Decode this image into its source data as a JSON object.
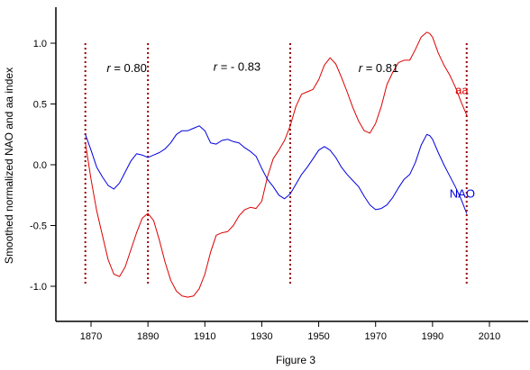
{
  "chart_data": {
    "type": "line",
    "title": "",
    "caption": "Figure 3",
    "xlabel": "",
    "ylabel": "Smoothed normalized NAO and aa index",
    "xlim": [
      1858,
      2012
    ],
    "ylim": [
      -1.3,
      1.3
    ],
    "xticks": [
      1870,
      1890,
      1910,
      1930,
      1950,
      1970,
      1990,
      2010
    ],
    "yticks": [
      -1.0,
      -0.5,
      0.0,
      0.5,
      1.0
    ],
    "ytick_labels": [
      "-1.0",
      "-0.5",
      "0.0",
      "0.5",
      "1.0"
    ],
    "grid": false,
    "legend": "none",
    "colors": {
      "aa": "#dd0000",
      "NAO": "#0000dd",
      "divider": "#990000",
      "axis": "#000000"
    },
    "series": [
      {
        "name": "aa",
        "x": [
          1868,
          1870,
          1872,
          1874,
          1876,
          1878,
          1880,
          1882,
          1884,
          1886,
          1888,
          1890,
          1892,
          1894,
          1896,
          1898,
          1900,
          1902,
          1904,
          1906,
          1908,
          1910,
          1912,
          1914,
          1916,
          1918,
          1920,
          1922,
          1924,
          1926,
          1928,
          1930,
          1932,
          1934,
          1936,
          1938,
          1940,
          1942,
          1944,
          1946,
          1948,
          1950,
          1952,
          1954,
          1956,
          1958,
          1960,
          1962,
          1964,
          1966,
          1968,
          1970,
          1972,
          1974,
          1976,
          1978,
          1980,
          1982,
          1984,
          1986,
          1988,
          1989,
          1990,
          1992,
          1994,
          1996,
          1998,
          2000,
          2002
        ],
        "y": [
          0.18,
          -0.12,
          -0.38,
          -0.58,
          -0.78,
          -0.9,
          -0.92,
          -0.84,
          -0.7,
          -0.56,
          -0.44,
          -0.4,
          -0.46,
          -0.62,
          -0.8,
          -0.95,
          -1.04,
          -1.08,
          -1.09,
          -1.08,
          -1.02,
          -0.9,
          -0.72,
          -0.58,
          -0.56,
          -0.55,
          -0.5,
          -0.42,
          -0.37,
          -0.35,
          -0.36,
          -0.3,
          -0.1,
          0.05,
          0.12,
          0.2,
          0.32,
          0.48,
          0.58,
          0.6,
          0.62,
          0.7,
          0.82,
          0.88,
          0.83,
          0.72,
          0.6,
          0.47,
          0.36,
          0.28,
          0.26,
          0.34,
          0.48,
          0.66,
          0.76,
          0.84,
          0.86,
          0.86,
          0.95,
          1.05,
          1.09,
          1.08,
          1.05,
          0.92,
          0.82,
          0.74,
          0.64,
          0.52,
          0.41
        ]
      },
      {
        "name": "NAO",
        "x": [
          1868,
          1870,
          1872,
          1874,
          1876,
          1878,
          1880,
          1882,
          1884,
          1886,
          1888,
          1890,
          1892,
          1894,
          1896,
          1898,
          1900,
          1902,
          1904,
          1906,
          1908,
          1910,
          1912,
          1914,
          1916,
          1918,
          1920,
          1922,
          1924,
          1926,
          1928,
          1930,
          1932,
          1934,
          1936,
          1938,
          1940,
          1942,
          1944,
          1946,
          1948,
          1950,
          1952,
          1954,
          1956,
          1958,
          1960,
          1962,
          1964,
          1966,
          1968,
          1970,
          1972,
          1974,
          1976,
          1978,
          1980,
          1982,
          1984,
          1986,
          1988,
          1989,
          1990,
          1992,
          1994,
          1996,
          1998,
          2000,
          2002
        ],
        "y": [
          0.25,
          0.12,
          -0.02,
          -0.1,
          -0.17,
          -0.2,
          -0.15,
          -0.06,
          0.03,
          0.09,
          0.08,
          0.06,
          0.08,
          0.1,
          0.13,
          0.18,
          0.25,
          0.28,
          0.28,
          0.3,
          0.32,
          0.28,
          0.18,
          0.17,
          0.2,
          0.21,
          0.19,
          0.18,
          0.14,
          0.11,
          0.07,
          -0.03,
          -0.12,
          -0.18,
          -0.25,
          -0.28,
          -0.24,
          -0.16,
          -0.08,
          -0.02,
          0.05,
          0.12,
          0.15,
          0.12,
          0.06,
          -0.02,
          -0.08,
          -0.13,
          -0.18,
          -0.26,
          -0.33,
          -0.37,
          -0.36,
          -0.33,
          -0.27,
          -0.19,
          -0.12,
          -0.08,
          0.02,
          0.16,
          0.25,
          0.24,
          0.21,
          0.1,
          0.0,
          -0.09,
          -0.18,
          -0.28,
          -0.4
        ]
      }
    ],
    "series_labels": [
      {
        "series": "aa",
        "text": "aa",
        "x": 1998,
        "y": 0.58
      },
      {
        "series": "NAO",
        "text": "NAO",
        "x": 1996,
        "y": -0.27
      }
    ],
    "dividers": [
      {
        "x": 1868,
        "y_range": [
          -1.0,
          1.0
        ]
      },
      {
        "x": 1890,
        "y_range": [
          -1.0,
          1.0
        ]
      },
      {
        "x": 1940,
        "y_range": [
          -1.0,
          1.0
        ]
      },
      {
        "x": 2002,
        "y_range": [
          -1.0,
          1.0
        ]
      }
    ],
    "annotations": [
      {
        "prefix": "r",
        "text": " = 0.80",
        "x": 1875.5,
        "y": 0.8
      },
      {
        "prefix": "r",
        "text": " = - 0.83",
        "x": 1913,
        "y": 0.81
      },
      {
        "prefix": "r",
        "text": " = 0.81",
        "x": 1964,
        "y": 0.8
      }
    ]
  }
}
